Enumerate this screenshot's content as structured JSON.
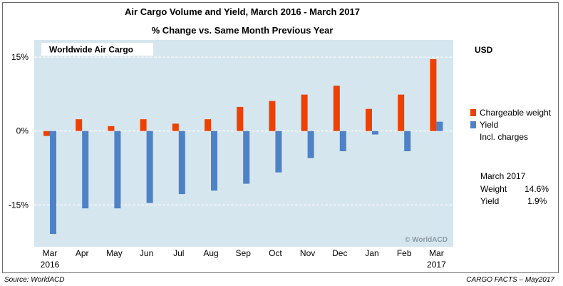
{
  "chart_data": {
    "type": "bar",
    "title": "Air Cargo Volume and Yield, March 2016 - March 2017",
    "subtitle": "% Change vs. Same Month Previous Year",
    "panel_label": "Worldwide Air Cargo",
    "unit_label": "USD",
    "categories": [
      "Mar",
      "Apr",
      "May",
      "Jun",
      "Jul",
      "Aug",
      "Sep",
      "Oct",
      "Nov",
      "Dec",
      "Jan",
      "Feb",
      "Mar"
    ],
    "category_sublabels": [
      "2016",
      "",
      "",
      "",
      "",
      "",
      "",
      "",
      "",
      "",
      "",
      "",
      "2017"
    ],
    "series": [
      {
        "name": "Chargeable weight",
        "color": "#ee4000",
        "values": [
          -1.0,
          2.4,
          1.0,
          2.4,
          1.5,
          2.4,
          4.9,
          6.1,
          7.4,
          9.2,
          4.5,
          7.4,
          14.6
        ]
      },
      {
        "name": "Yield",
        "color": "#4f81c7",
        "values": [
          -20.9,
          -15.7,
          -15.7,
          -14.6,
          -12.8,
          -12.1,
          -10.7,
          -8.4,
          -5.5,
          -4.1,
          -0.7,
          -4.1,
          1.9
        ]
      }
    ],
    "yield_note": "Incl. charges",
    "ytick_labels": [
      "15%",
      "0%",
      "-15%"
    ],
    "ylim": [
      -23.5,
      18.5
    ],
    "grid": true,
    "watermark": "© WorldACD"
  },
  "summary": {
    "heading": "March 2017",
    "rows": [
      {
        "label": "Weight",
        "value": "14.6%"
      },
      {
        "label": "Yield",
        "value": "1.9%"
      }
    ]
  },
  "footer": {
    "source": "Source: WorldACD",
    "credit": "CARGO FACTS – May2017"
  }
}
